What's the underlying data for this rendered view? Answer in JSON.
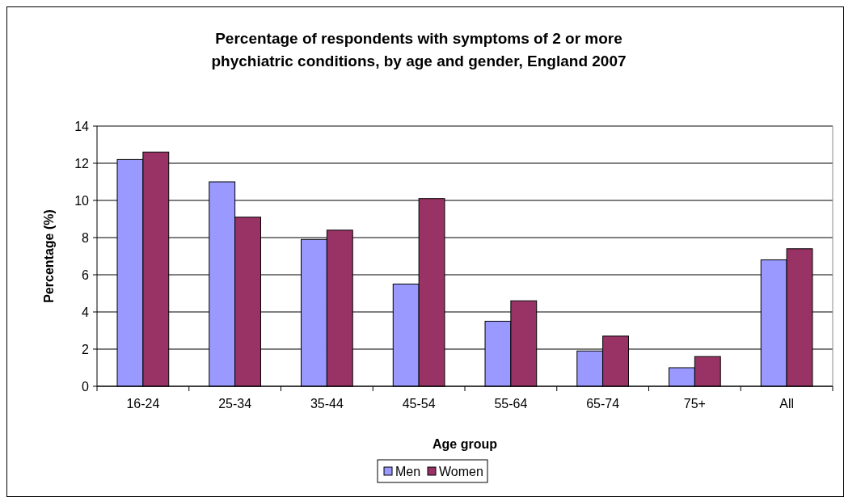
{
  "chart_data": {
    "type": "bar",
    "title": "Percentage of respondents with symptoms of 2 or more phychiatric conditions, by age and gender, England 2007",
    "xlabel": "Age group",
    "ylabel": "Percentage (%)",
    "categories": [
      "16-24",
      "25-34",
      "35-44",
      "45-54",
      "55-64",
      "65-74",
      "75+",
      "All"
    ],
    "series": [
      {
        "name": "Men",
        "color": "#9999ff",
        "values": [
          12.2,
          11.0,
          7.9,
          5.5,
          3.5,
          1.9,
          1.0,
          6.8
        ]
      },
      {
        "name": "Women",
        "color": "#993366",
        "values": [
          12.6,
          9.1,
          8.4,
          10.1,
          4.6,
          2.7,
          1.6,
          7.4
        ]
      }
    ],
    "ylim": [
      0,
      14
    ],
    "yticks": [
      0,
      2,
      4,
      6,
      8,
      10,
      12,
      14
    ],
    "grid": "y",
    "legend": "bottom"
  }
}
